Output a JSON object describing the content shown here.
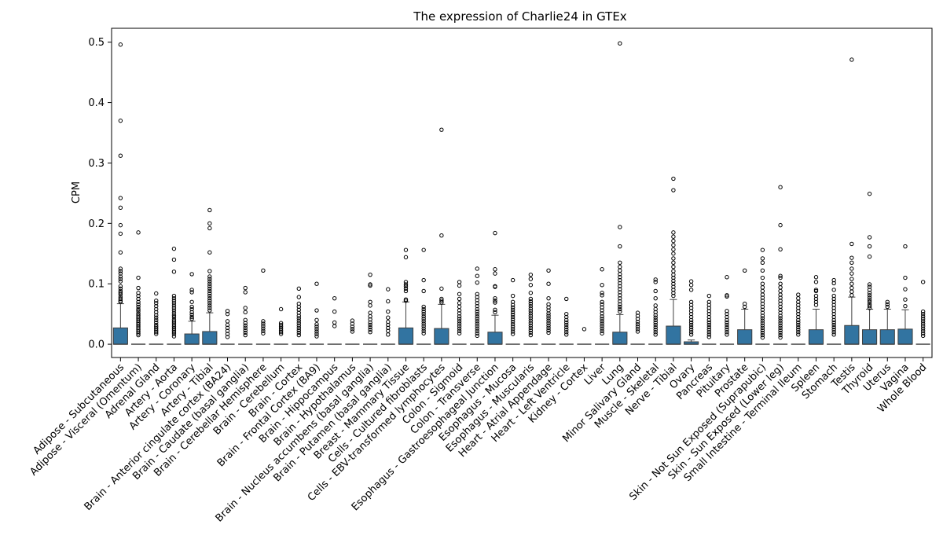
{
  "chart_data": {
    "type": "box",
    "title": "The expression of Charlie24 in GTEx",
    "xlabel": "",
    "ylabel": "CPM",
    "ylim": [
      -0.022,
      0.523
    ],
    "yticks": [
      0.0,
      0.1,
      0.2,
      0.3,
      0.4,
      0.5
    ],
    "ytick_labels": [
      "0.0",
      "0.1",
      "0.2",
      "0.3",
      "0.4",
      "0.5"
    ],
    "box_color": "#3274a1",
    "grid": false,
    "categories": [
      "Adipose - Subcutaneous",
      "Adipose - Visceral (Omentum)",
      "Adrenal Gland",
      "Artery - Aorta",
      "Artery - Coronary",
      "Artery - Tibial",
      "Brain - Anterior cingulate cortex (BA24)",
      "Brain - Caudate (basal ganglia)",
      "Brain - Cerebellar Hemisphere",
      "Brain - Cerebellum",
      "Brain - Cortex",
      "Brain - Frontal Cortex (BA9)",
      "Brain - Hippocampus",
      "Brain - Hypothalamus",
      "Brain - Nucleus accumbens (basal ganglia)",
      "Brain - Putamen (basal ganglia)",
      "Breast - Mammary Tissue",
      "Cells - Cultured fibroblasts",
      "Cells - EBV-transformed lymphocytes",
      "Colon - Sigmoid",
      "Colon - Transverse",
      "Esophagus - Gastroesophageal Junction",
      "Esophagus - Mucosa",
      "Esophagus - Muscularis",
      "Heart - Atrial Appendage",
      "Heart - Left Ventricle",
      "Kidney - Cortex",
      "Liver",
      "Lung",
      "Minor Salivary Gland",
      "Muscle - Skeletal",
      "Nerve - Tibial",
      "Ovary",
      "Pancreas",
      "Pituitary",
      "Prostate",
      "Skin - Not Sun Exposed (Suprapubic)",
      "Skin - Sun Exposed (Lower leg)",
      "Small Intestine - Terminal Ileum",
      "Spleen",
      "Stomach",
      "Testis",
      "Thyroid",
      "Uterus",
      "Vagina",
      "Whole Blood"
    ],
    "boxes": [
      {
        "q1": 0,
        "median": 0,
        "q3": 0.027,
        "whisker_low": 0,
        "whisker_high": 0.067,
        "outliers": [
          0.496,
          0.37,
          0.312,
          0.242,
          0.226,
          0.197,
          0.183,
          0.152,
          0.125,
          0.121,
          0.117,
          0.112,
          0.108,
          0.104,
          0.096,
          0.092,
          0.088,
          0.085,
          0.082,
          0.078,
          0.075,
          0.072,
          0.07
        ]
      },
      {
        "q1": 0,
        "median": 0,
        "q3": 0,
        "whisker_low": 0,
        "whisker_high": 0,
        "outliers": [
          0.185,
          0.11,
          0.093,
          0.085,
          0.08,
          0.075,
          0.07,
          0.066,
          0.062,
          0.058,
          0.055,
          0.051,
          0.048,
          0.045,
          0.042,
          0.039,
          0.036,
          0.033,
          0.03,
          0.027,
          0.024,
          0.021,
          0.018,
          0.015
        ]
      },
      {
        "q1": 0,
        "median": 0,
        "q3": 0,
        "whisker_low": 0,
        "whisker_high": 0,
        "outliers": [
          0.084,
          0.072,
          0.068,
          0.063,
          0.058,
          0.053,
          0.048,
          0.044,
          0.04,
          0.036,
          0.032,
          0.029,
          0.026,
          0.023,
          0.02,
          0.017
        ]
      },
      {
        "q1": 0,
        "median": 0,
        "q3": 0,
        "whisker_low": 0,
        "whisker_high": 0,
        "outliers": [
          0.158,
          0.14,
          0.12,
          0.08,
          0.076,
          0.072,
          0.068,
          0.064,
          0.06,
          0.056,
          0.052,
          0.048,
          0.045,
          0.041,
          0.038,
          0.035,
          0.032,
          0.029,
          0.026,
          0.023,
          0.02,
          0.017,
          0.013
        ]
      },
      {
        "q1": 0,
        "median": 0,
        "q3": 0.017,
        "whisker_low": 0,
        "whisker_high": 0.038,
        "outliers": [
          0.116,
          0.09,
          0.086,
          0.07,
          0.062,
          0.058,
          0.053,
          0.049,
          0.045,
          0.042
        ]
      },
      {
        "q1": 0,
        "median": 0,
        "q3": 0.021,
        "whisker_low": 0,
        "whisker_high": 0.052,
        "outliers": [
          0.222,
          0.2,
          0.192,
          0.152,
          0.121,
          0.112,
          0.108,
          0.104,
          0.1,
          0.096,
          0.092,
          0.088,
          0.084,
          0.08,
          0.076,
          0.072,
          0.068,
          0.064,
          0.06,
          0.056
        ]
      },
      {
        "q1": 0,
        "median": 0,
        "q3": 0,
        "whisker_low": 0,
        "whisker_high": 0,
        "outliers": [
          0.055,
          0.05,
          0.038,
          0.032,
          0.027,
          0.022,
          0.017,
          0.012
        ]
      },
      {
        "q1": 0,
        "median": 0,
        "q3": 0,
        "whisker_low": 0,
        "whisker_high": 0,
        "outliers": [
          0.093,
          0.086,
          0.06,
          0.053,
          0.04,
          0.035,
          0.031,
          0.027,
          0.023,
          0.019,
          0.015
        ]
      },
      {
        "q1": 0,
        "median": 0,
        "q3": 0,
        "whisker_low": 0,
        "whisker_high": 0,
        "outliers": [
          0.122,
          0.038,
          0.034,
          0.03,
          0.026,
          0.022,
          0.018
        ]
      },
      {
        "q1": 0,
        "median": 0,
        "q3": 0,
        "whisker_low": 0,
        "whisker_high": 0,
        "outliers": [
          0.058,
          0.035,
          0.032,
          0.029,
          0.026,
          0.023,
          0.02,
          0.017
        ]
      },
      {
        "q1": 0,
        "median": 0,
        "q3": 0,
        "whisker_low": 0,
        "whisker_high": 0,
        "outliers": [
          0.092,
          0.078,
          0.067,
          0.062,
          0.057,
          0.052,
          0.047,
          0.043,
          0.039,
          0.035,
          0.031,
          0.027,
          0.023,
          0.019,
          0.015
        ]
      },
      {
        "q1": 0,
        "median": 0,
        "q3": 0,
        "whisker_low": 0,
        "whisker_high": 0,
        "outliers": [
          0.1,
          0.056,
          0.04,
          0.033,
          0.029,
          0.025,
          0.021,
          0.017,
          0.013
        ]
      },
      {
        "q1": 0,
        "median": 0,
        "q3": 0,
        "whisker_low": 0,
        "whisker_high": 0,
        "outliers": [
          0.076,
          0.054,
          0.036,
          0.03
        ]
      },
      {
        "q1": 0,
        "median": 0,
        "q3": 0,
        "whisker_low": 0,
        "whisker_high": 0,
        "outliers": [
          0.039,
          0.034,
          0.029,
          0.025,
          0.021
        ]
      },
      {
        "q1": 0,
        "median": 0,
        "q3": 0,
        "whisker_low": 0,
        "whisker_high": 0,
        "outliers": [
          0.115,
          0.099,
          0.097,
          0.07,
          0.064,
          0.052,
          0.046,
          0.041,
          0.036,
          0.032,
          0.028,
          0.024,
          0.02
        ]
      },
      {
        "q1": 0,
        "median": 0,
        "q3": 0,
        "whisker_low": 0,
        "whisker_high": 0,
        "outliers": [
          0.091,
          0.071,
          0.054,
          0.044,
          0.037,
          0.032,
          0.027,
          0.022,
          0.016
        ]
      },
      {
        "q1": 0,
        "median": 0,
        "q3": 0.027,
        "whisker_low": 0,
        "whisker_high": 0.07,
        "outliers": [
          0.156,
          0.144,
          0.103,
          0.099,
          0.096,
          0.092,
          0.088,
          0.074,
          0.072
        ]
      },
      {
        "q1": 0,
        "median": 0,
        "q3": 0,
        "whisker_low": 0,
        "whisker_high": 0,
        "outliers": [
          0.156,
          0.106,
          0.088,
          0.062,
          0.058,
          0.054,
          0.05,
          0.046,
          0.042,
          0.038,
          0.034,
          0.03,
          0.026,
          0.022,
          0.018
        ]
      },
      {
        "q1": 0,
        "median": 0,
        "q3": 0.026,
        "whisker_low": 0,
        "whisker_high": 0.066,
        "outliers": [
          0.355,
          0.18,
          0.092,
          0.075,
          0.072,
          0.069
        ]
      },
      {
        "q1": 0,
        "median": 0,
        "q3": 0,
        "whisker_low": 0,
        "whisker_high": 0,
        "outliers": [
          0.103,
          0.097,
          0.083,
          0.075,
          0.068,
          0.062,
          0.056,
          0.051,
          0.046,
          0.042,
          0.038,
          0.034,
          0.03,
          0.026,
          0.022,
          0.018
        ]
      },
      {
        "q1": 0,
        "median": 0,
        "q3": 0,
        "whisker_low": 0,
        "whisker_high": 0,
        "outliers": [
          0.125,
          0.113,
          0.102,
          0.083,
          0.078,
          0.073,
          0.068,
          0.063,
          0.058,
          0.054,
          0.05,
          0.046,
          0.042,
          0.038,
          0.034,
          0.03,
          0.026,
          0.022,
          0.018,
          0.014
        ]
      },
      {
        "q1": 0,
        "median": 0,
        "q3": 0.02,
        "whisker_low": 0,
        "whisker_high": 0.048,
        "outliers": [
          0.184,
          0.124,
          0.117,
          0.096,
          0.095,
          0.076,
          0.072,
          0.069,
          0.057,
          0.053
        ]
      },
      {
        "q1": 0,
        "median": 0,
        "q3": 0,
        "whisker_low": 0,
        "whisker_high": 0,
        "outliers": [
          0.106,
          0.08,
          0.07,
          0.065,
          0.061,
          0.057,
          0.053,
          0.049,
          0.045,
          0.041,
          0.037,
          0.033,
          0.029,
          0.025,
          0.021,
          0.017
        ]
      },
      {
        "q1": 0,
        "median": 0,
        "q3": 0,
        "whisker_low": 0,
        "whisker_high": 0,
        "outliers": [
          0.115,
          0.108,
          0.098,
          0.085,
          0.075,
          0.071,
          0.067,
          0.063,
          0.059,
          0.055,
          0.051,
          0.047,
          0.043,
          0.039,
          0.035,
          0.031,
          0.027,
          0.023,
          0.019,
          0.015
        ]
      },
      {
        "q1": 0,
        "median": 0,
        "q3": 0,
        "whisker_low": 0,
        "whisker_high": 0,
        "outliers": [
          0.122,
          0.1,
          0.076,
          0.066,
          0.061,
          0.056,
          0.051,
          0.047,
          0.043,
          0.039,
          0.035,
          0.031,
          0.027,
          0.023,
          0.019
        ]
      },
      {
        "q1": 0,
        "median": 0,
        "q3": 0,
        "whisker_low": 0,
        "whisker_high": 0,
        "outliers": [
          0.075,
          0.05,
          0.045,
          0.04,
          0.036,
          0.032,
          0.028,
          0.024,
          0.02,
          0.016
        ]
      },
      {
        "q1": 0,
        "median": 0,
        "q3": 0,
        "whisker_low": 0,
        "whisker_high": 0,
        "outliers": [
          0.025
        ]
      },
      {
        "q1": 0,
        "median": 0,
        "q3": 0,
        "whisker_low": 0,
        "whisker_high": 0,
        "outliers": [
          0.124,
          0.098,
          0.085,
          0.081,
          0.07,
          0.066,
          0.061,
          0.056,
          0.051,
          0.046,
          0.042,
          0.038,
          0.034,
          0.03,
          0.026,
          0.022,
          0.018
        ]
      },
      {
        "q1": 0,
        "median": 0,
        "q3": 0.02,
        "whisker_low": 0,
        "whisker_high": 0.049,
        "outliers": [
          0.498,
          0.194,
          0.162,
          0.135,
          0.128,
          0.122,
          0.116,
          0.111,
          0.106,
          0.101,
          0.096,
          0.091,
          0.086,
          0.081,
          0.076,
          0.071,
          0.066,
          0.062,
          0.058,
          0.054
        ]
      },
      {
        "q1": 0,
        "median": 0,
        "q3": 0,
        "whisker_low": 0,
        "whisker_high": 0,
        "outliers": [
          0.052,
          0.047,
          0.042,
          0.037,
          0.033,
          0.029,
          0.025,
          0.021
        ]
      },
      {
        "q1": 0,
        "median": 0,
        "q3": 0,
        "whisker_low": 0,
        "whisker_high": 0,
        "outliers": [
          0.107,
          0.103,
          0.088,
          0.076,
          0.064,
          0.058,
          0.053,
          0.048,
          0.044,
          0.04,
          0.036,
          0.032,
          0.028,
          0.024,
          0.02,
          0.016
        ]
      },
      {
        "q1": 0,
        "median": 0,
        "q3": 0.03,
        "whisker_low": 0,
        "whisker_high": 0.074,
        "outliers": [
          0.274,
          0.255,
          0.185,
          0.178,
          0.171,
          0.164,
          0.157,
          0.15,
          0.142,
          0.135,
          0.128,
          0.121,
          0.115,
          0.11,
          0.105,
          0.1,
          0.095,
          0.09,
          0.085,
          0.08
        ]
      },
      {
        "q1": 0,
        "median": 0,
        "q3": 0.004,
        "whisker_low": 0,
        "whisker_high": 0.007,
        "outliers": [
          0.104,
          0.098,
          0.09,
          0.07,
          0.065,
          0.06,
          0.055,
          0.05,
          0.045,
          0.04,
          0.036,
          0.032,
          0.028,
          0.024,
          0.02,
          0.016
        ]
      },
      {
        "q1": 0,
        "median": 0,
        "q3": 0,
        "whisker_low": 0,
        "whisker_high": 0,
        "outliers": [
          0.08,
          0.07,
          0.065,
          0.06,
          0.055,
          0.05,
          0.045,
          0.04,
          0.036,
          0.032,
          0.028,
          0.024,
          0.02,
          0.016,
          0.012
        ]
      },
      {
        "q1": 0,
        "median": 0,
        "q3": 0,
        "whisker_low": 0,
        "whisker_high": 0,
        "outliers": [
          0.111,
          0.081,
          0.079,
          0.055,
          0.05,
          0.045,
          0.04,
          0.036,
          0.032,
          0.028,
          0.024,
          0.02,
          0.016
        ]
      },
      {
        "q1": 0,
        "median": 0,
        "q3": 0.024,
        "whisker_low": 0,
        "whisker_high": 0.058,
        "outliers": [
          0.122,
          0.067,
          0.062
        ]
      },
      {
        "q1": 0,
        "median": 0,
        "q3": 0,
        "whisker_low": 0,
        "whisker_high": 0,
        "outliers": [
          0.156,
          0.142,
          0.135,
          0.122,
          0.11,
          0.1,
          0.094,
          0.088,
          0.082,
          0.077,
          0.072,
          0.067,
          0.062,
          0.057,
          0.052,
          0.047,
          0.043,
          0.039,
          0.035,
          0.031,
          0.027,
          0.023,
          0.019,
          0.015,
          0.011
        ]
      },
      {
        "q1": 0,
        "median": 0,
        "q3": 0,
        "whisker_low": 0,
        "whisker_high": 0,
        "outliers": [
          0.26,
          0.197,
          0.157,
          0.113,
          0.11,
          0.1,
          0.094,
          0.088,
          0.082,
          0.077,
          0.072,
          0.067,
          0.062,
          0.057,
          0.052,
          0.047,
          0.043,
          0.039,
          0.035,
          0.031,
          0.027,
          0.023,
          0.019,
          0.015,
          0.011
        ]
      },
      {
        "q1": 0,
        "median": 0,
        "q3": 0,
        "whisker_low": 0,
        "whisker_high": 0,
        "outliers": [
          0.082,
          0.076,
          0.07,
          0.065,
          0.06,
          0.055,
          0.05,
          0.045,
          0.04,
          0.036,
          0.032,
          0.028,
          0.024,
          0.02,
          0.016
        ]
      },
      {
        "q1": 0,
        "median": 0,
        "q3": 0.024,
        "whisker_low": 0,
        "whisker_high": 0.058,
        "outliers": [
          0.111,
          0.103,
          0.09,
          0.088,
          0.08,
          0.075,
          0.07,
          0.065
        ]
      },
      {
        "q1": 0,
        "median": 0,
        "q3": 0,
        "whisker_low": 0,
        "whisker_high": 0,
        "outliers": [
          0.106,
          0.101,
          0.09,
          0.08,
          0.075,
          0.07,
          0.065,
          0.06,
          0.055,
          0.05,
          0.045,
          0.04,
          0.036,
          0.032,
          0.028,
          0.024,
          0.02,
          0.016
        ]
      },
      {
        "q1": 0,
        "median": 0,
        "q3": 0.031,
        "whisker_low": 0,
        "whisker_high": 0.078,
        "outliers": [
          0.471,
          0.166,
          0.143,
          0.135,
          0.125,
          0.117,
          0.108,
          0.1,
          0.093,
          0.087,
          0.081
        ]
      },
      {
        "q1": 0,
        "median": 0,
        "q3": 0.024,
        "whisker_low": 0,
        "whisker_high": 0.058,
        "outliers": [
          0.249,
          0.177,
          0.162,
          0.145,
          0.099,
          0.095,
          0.09,
          0.085,
          0.081,
          0.077,
          0.073,
          0.07,
          0.066,
          0.063,
          0.06
        ]
      },
      {
        "q1": 0,
        "median": 0,
        "q3": 0.024,
        "whisker_low": 0,
        "whisker_high": 0.058,
        "outliers": [
          0.07,
          0.066,
          0.062
        ]
      },
      {
        "q1": 0,
        "median": 0,
        "q3": 0.025,
        "whisker_low": 0,
        "whisker_high": 0.057,
        "outliers": [
          0.162,
          0.11,
          0.091,
          0.074,
          0.063
        ]
      },
      {
        "q1": 0,
        "median": 0,
        "q3": 0,
        "whisker_low": 0,
        "whisker_high": 0,
        "outliers": [
          0.103,
          0.054,
          0.05,
          0.046,
          0.042,
          0.038,
          0.034,
          0.03,
          0.026,
          0.022,
          0.018,
          0.014
        ]
      }
    ]
  }
}
